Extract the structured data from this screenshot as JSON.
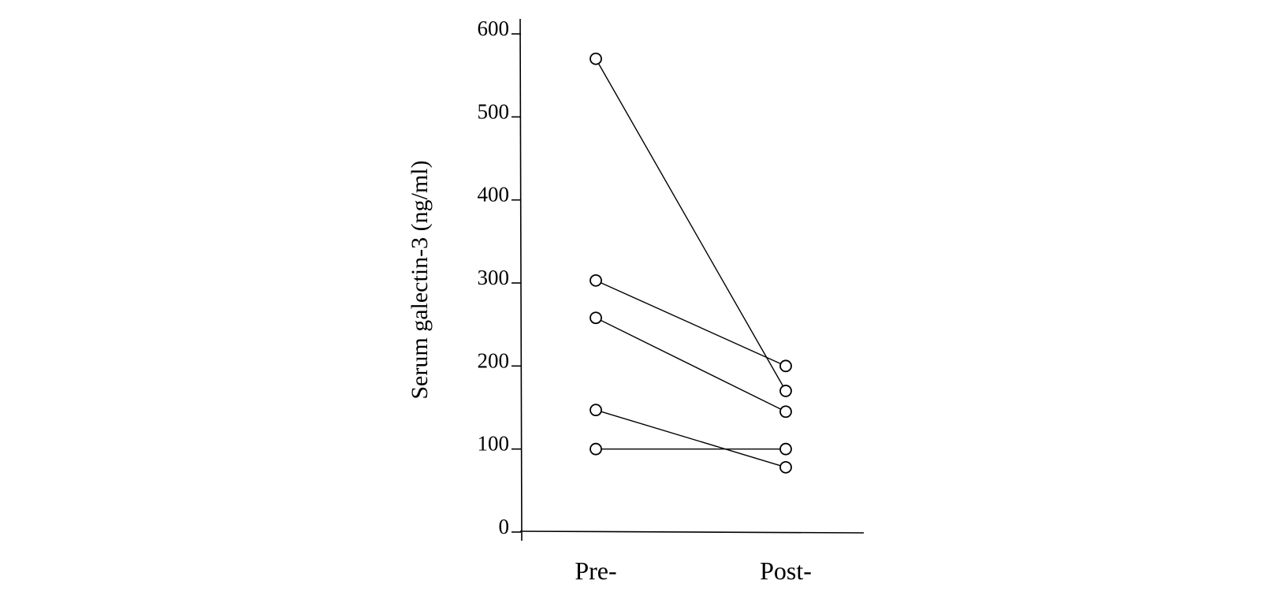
{
  "chart_data": {
    "type": "line",
    "title": "",
    "ylabel": "Serum galectin-3 (ng/ml)",
    "xlabel": "",
    "categories": [
      "Pre-",
      "Post-"
    ],
    "ylim": [
      0,
      600
    ],
    "yticks": [
      0,
      100,
      200,
      300,
      400,
      500,
      600
    ],
    "grid": false,
    "marker": "open-circle",
    "series": [
      {
        "values": [
          570,
          170
        ]
      },
      {
        "values": [
          303,
          200
        ]
      },
      {
        "values": [
          258,
          145
        ]
      },
      {
        "values": [
          147,
          78
        ]
      },
      {
        "values": [
          100,
          100
        ]
      }
    ]
  }
}
